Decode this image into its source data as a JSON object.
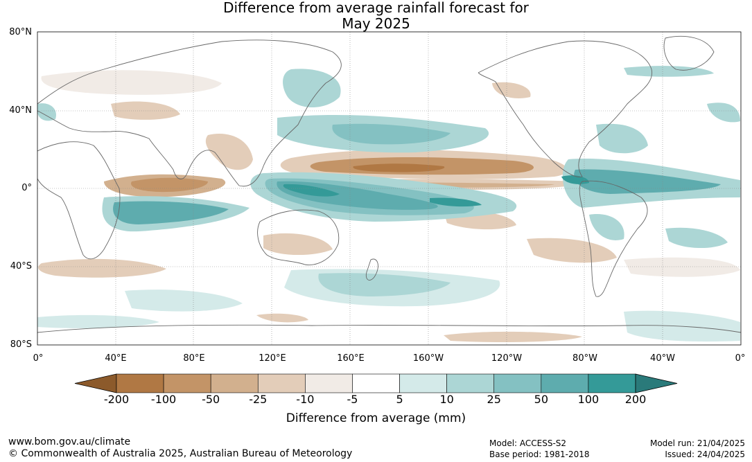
{
  "title": {
    "line1": "Difference from average rainfall forecast for",
    "line2": "May 2025"
  },
  "map": {
    "lat_labels": [
      "80°N",
      "40°N",
      "0°",
      "40°S",
      "80°S"
    ],
    "lon_labels": [
      "0°",
      "40°E",
      "80°E",
      "120°E",
      "160°E",
      "160°W",
      "120°W",
      "80°W",
      "40°W",
      "0°"
    ],
    "land_outline_color": "#666666",
    "gridline_color": "#888888",
    "features": [
      {
        "name": "enhanced rainfall west Pacific / maritime continent",
        "class": "wet-100",
        "lon": 125,
        "lat": 2
      },
      {
        "name": "enhanced rainfall SPCZ",
        "class": "wet-50",
        "lon": -175,
        "lat": -10
      },
      {
        "name": "reduced rainfall north equatorial Pacific",
        "class": "dry-100",
        "lon": -170,
        "lat": 10
      },
      {
        "name": "reduced rainfall equatorial Indian Ocean",
        "class": "dry-50",
        "lon": 70,
        "lat": 0
      },
      {
        "name": "enhanced rainfall southern Indian Ocean",
        "class": "wet-50",
        "lon": 60,
        "lat": -12
      },
      {
        "name": "enhanced rainfall tropical Atlantic / Caribbean",
        "class": "wet-100",
        "lon": -85,
        "lat": 3
      }
    ]
  },
  "colorbar": {
    "ticks": [
      "-200",
      "-100",
      "-50",
      "-25",
      "-10",
      "-5",
      "5",
      "10",
      "25",
      "50",
      "100",
      "200"
    ],
    "colors": {
      "below_min": "#8c5a2b",
      "bins": [
        "#b07844",
        "#c39467",
        "#d2b08e",
        "#e3cdb9",
        "#f1ebe6",
        "#ffffff",
        "#d4eae9",
        "#acd6d5",
        "#84c1c2",
        "#5eacae",
        "#349a98"
      ],
      "above_max": "#2a7a7a"
    },
    "label": "Difference from average (mm)"
  },
  "footer": {
    "url": "www.bom.gov.au/climate",
    "copyright": "© Commonwealth of Australia 2025, Australian Bureau of Meteorology",
    "model": "Model: ACCESS-S2",
    "base_period": "Base period: 1981-2018",
    "model_run": "Model run: 21/04/2025",
    "issued": "Issued: 24/04/2025"
  }
}
